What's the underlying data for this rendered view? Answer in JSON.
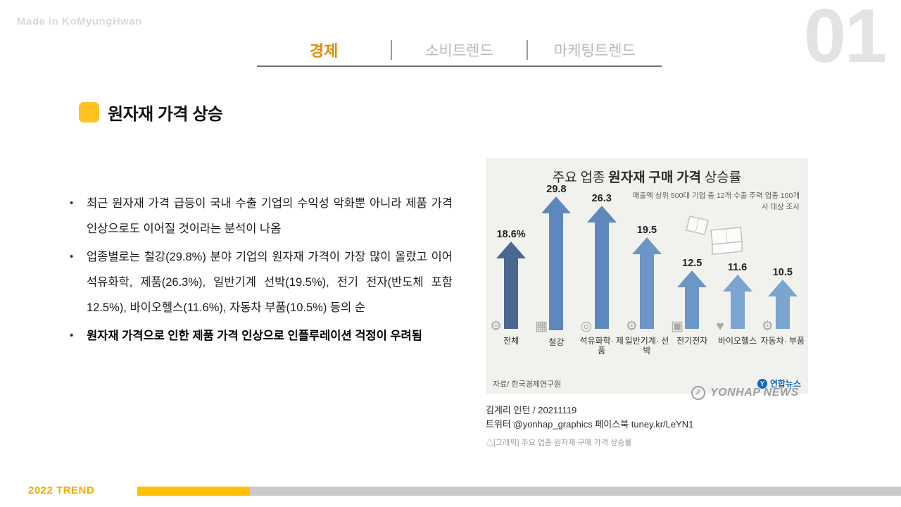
{
  "watermark": "Made in KoMyungHwan",
  "page_number": "01",
  "tabs": [
    {
      "label": "경제",
      "active": true
    },
    {
      "label": "소비트렌드",
      "active": false
    },
    {
      "label": "마케팅트렌드",
      "active": false
    }
  ],
  "title": "원자재 가격 상승",
  "bullets": [
    {
      "text": "최근 원자재 가격 급등이 국내 수출 기업의 수익성 악화뿐 아니라 제품 가격 인상으로도 이어질 것이라는 분석이 나옴",
      "bold": false
    },
    {
      "text": "업종별로는 철강(29.8%) 분야 기업의 원자재 가격이 가장 많이 올랐고 이어 석유화학, 제품(26.3%), 일반기계 선박(19.5%), 전기 전자(반도체 포함 12.5%), 바이오헬스(11.6%), 자동차 부품(10.5%) 등의 순",
      "bold": false
    },
    {
      "text": "원자재 가격으로 인한 제품 가격 인상으로 인플루레이션 걱정이 우려됨",
      "bold": true
    }
  ],
  "chart_data": {
    "type": "bar",
    "title": "주요 업종 원자재 구매 가격 상승률",
    "title_parts": {
      "prefix": "주요 업종 ",
      "bold": "원자재 구매 가격",
      "suffix": " 상승률"
    },
    "subtitle": "매출액 상위 500대 기업 중 12개 수출 주력 업종 100개사 대상 조사",
    "categories": [
      "전체",
      "철강",
      "석유화학· 제품",
      "일반기계· 선박",
      "전기전자",
      "바이오헬스",
      "자동차· 부품"
    ],
    "values": [
      18.6,
      29.8,
      26.3,
      19.5,
      12.5,
      11.6,
      10.5
    ],
    "value_labels": [
      "18.6%",
      "29.8",
      "26.3",
      "19.5",
      "12.5",
      "11.6",
      "10.5"
    ],
    "unit": "%",
    "ylim": [
      0,
      32
    ],
    "bar_colors": [
      "#49678f",
      "#5e88bd",
      "#5e88bd",
      "#6c96c6",
      "#6c96c6",
      "#7ba4d0",
      "#7ba4d0"
    ],
    "icons": [
      "gear",
      "steel-beam",
      "pipe",
      "machinery",
      "monitor",
      "heart",
      "car"
    ],
    "source": "자료/ 한국경제연구원",
    "publisher": "연합뉴스",
    "agency_watermark": "YONHAP NEWS"
  },
  "chart_caption": {
    "byline": "김계리 인턴 / 20211119",
    "social": "트위터 @yonhap_graphics  페이스북 tuney.kr/LeYN1",
    "caption": "△[그래픽] 주요 업종 원자재 구매 가격 상승률"
  },
  "footer": {
    "label": "2022 TREND"
  },
  "colors": {
    "accent_yellow": "#FFC000",
    "active_tab_orange": "#E08E00",
    "footer_orange": "#F5A800",
    "publisher_blue": "#1665C1",
    "panel_bg": "#F1F2EE"
  }
}
